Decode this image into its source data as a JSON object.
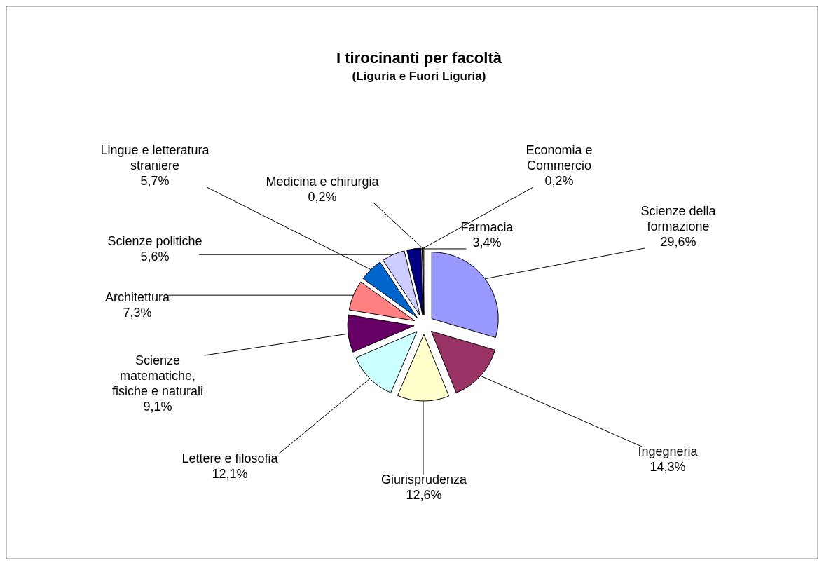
{
  "chart_data": {
    "type": "pie",
    "title": "I tirocinanti per facoltà",
    "subtitle": "(Liguria e Fuori Liguria)",
    "categories": [
      "Scienze della formazione",
      "Ingegneria",
      "Giurisprudenza",
      "Lettere e filosofia",
      "Scienze matematiche, fisiche e naturali",
      "Architettura",
      "Lingue e letteratura straniere",
      "Scienze politiche",
      "Farmacia",
      "Medicina e chirurgia",
      "Economia e Commercio"
    ],
    "values": [
      29.6,
      14.3,
      12.6,
      12.1,
      9.1,
      7.3,
      5.7,
      5.6,
      3.4,
      0.2,
      0.2
    ],
    "colors": [
      "#9999ff",
      "#993366",
      "#ffffcc",
      "#ccffff",
      "#660066",
      "#ff8080",
      "#0066cc",
      "#ccccff",
      "#000080",
      "#ff00ff",
      "#ffff00"
    ],
    "value_labels": [
      "29,6%",
      "14,3%",
      "12,6%",
      "12,1%",
      "9,1%",
      "7,3%",
      "5,7%",
      "5,6%",
      "3,4%",
      "0,2%",
      "0,2%"
    ],
    "legend": false
  }
}
